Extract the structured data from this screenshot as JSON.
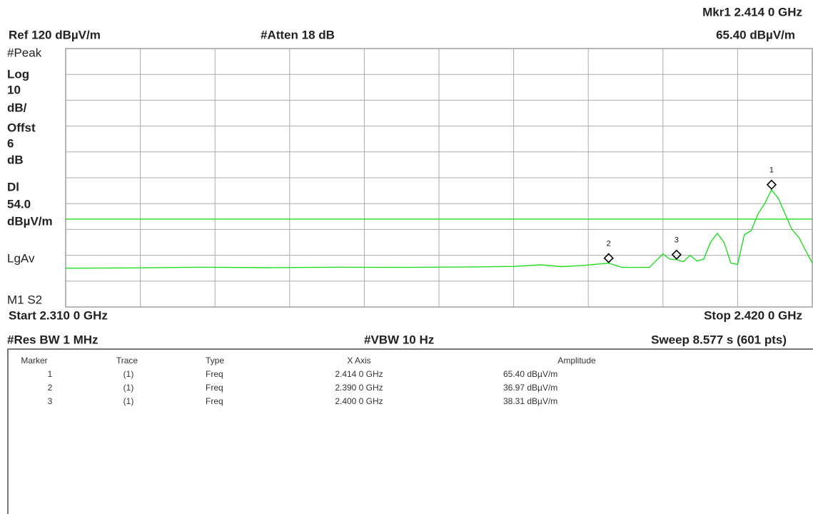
{
  "header": {
    "marker_readout": "Mkr1  2.414 0 GHz",
    "ref": "Ref 120 dBµV/m",
    "atten": "#Atten 18 dB",
    "marker_amplitude": "65.40 dBµV/m"
  },
  "side_labels": [
    "#Peak",
    "Log",
    "10",
    "dB/",
    "Offst",
    "6",
    "dB",
    "Dl",
    "54.0",
    "dBµV/m",
    "LgAv",
    "M1  S2"
  ],
  "footer": {
    "start": "Start 2.310 0 GHz",
    "stop": "Stop 2.420 0 GHz",
    "res_bw": "#Res BW 1 MHz",
    "vbw": "#VBW 10 Hz",
    "sweep": "Sweep 8.577 s (601 pts)"
  },
  "chart_data": {
    "type": "line",
    "xlim": [
      2.31,
      2.42
    ],
    "ylim": [
      20,
      120
    ],
    "xticks": [
      2.31,
      2.321,
      2.332,
      2.343,
      2.354,
      2.365,
      2.376,
      2.387,
      2.398,
      2.409,
      2.42
    ],
    "yticks": [
      20,
      30,
      40,
      50,
      60,
      70,
      80,
      90,
      100,
      110,
      120
    ],
    "grid": true,
    "display_line": 54.0,
    "series": [
      {
        "color": "#22dd22",
        "x": [
          2.31,
          2.32,
          2.33,
          2.34,
          2.35,
          2.36,
          2.37,
          2.376,
          2.38,
          2.383,
          2.386,
          2.39,
          2.392,
          2.396,
          2.398,
          2.399,
          2.4,
          2.401,
          2.402,
          2.403,
          2.404,
          2.405,
          2.406,
          2.407,
          2.408,
          2.409,
          2.41,
          2.411,
          2.412,
          2.413,
          2.414,
          2.415,
          2.416,
          2.417,
          2.418,
          2.419,
          2.42
        ],
        "values": [
          35.0,
          35.1,
          35.4,
          35.2,
          35.4,
          35.3,
          35.5,
          35.7,
          36.3,
          35.6,
          36.0,
          36.97,
          35.3,
          35.3,
          40.5,
          38.5,
          38.31,
          37.5,
          40.0,
          37.8,
          38.5,
          45.0,
          48.5,
          45.0,
          37.0,
          36.5,
          48.0,
          49.5,
          56.0,
          60.0,
          65.4,
          62.0,
          56.0,
          50.0,
          47.0,
          42.0,
          37.0
        ]
      }
    ],
    "markers": [
      {
        "label": "1",
        "x": 2.414,
        "value": 65.4
      },
      {
        "label": "2",
        "x": 2.39,
        "value": 36.97
      },
      {
        "label": "3",
        "x": 2.4,
        "value": 38.31
      }
    ]
  },
  "marker_table": {
    "headers": [
      "Marker",
      "Trace",
      "Type",
      "X Axis",
      "Amplitude"
    ],
    "rows": [
      [
        "1",
        "(1)",
        "Freq",
        "2.414 0 GHz",
        "65.40 dBµV/m"
      ],
      [
        "2",
        "(1)",
        "Freq",
        "2.390 0 GHz",
        "36.97 dBµV/m"
      ],
      [
        "3",
        "(1)",
        "Freq",
        "2.400 0 GHz",
        "38.31 dBµV/m"
      ]
    ]
  }
}
